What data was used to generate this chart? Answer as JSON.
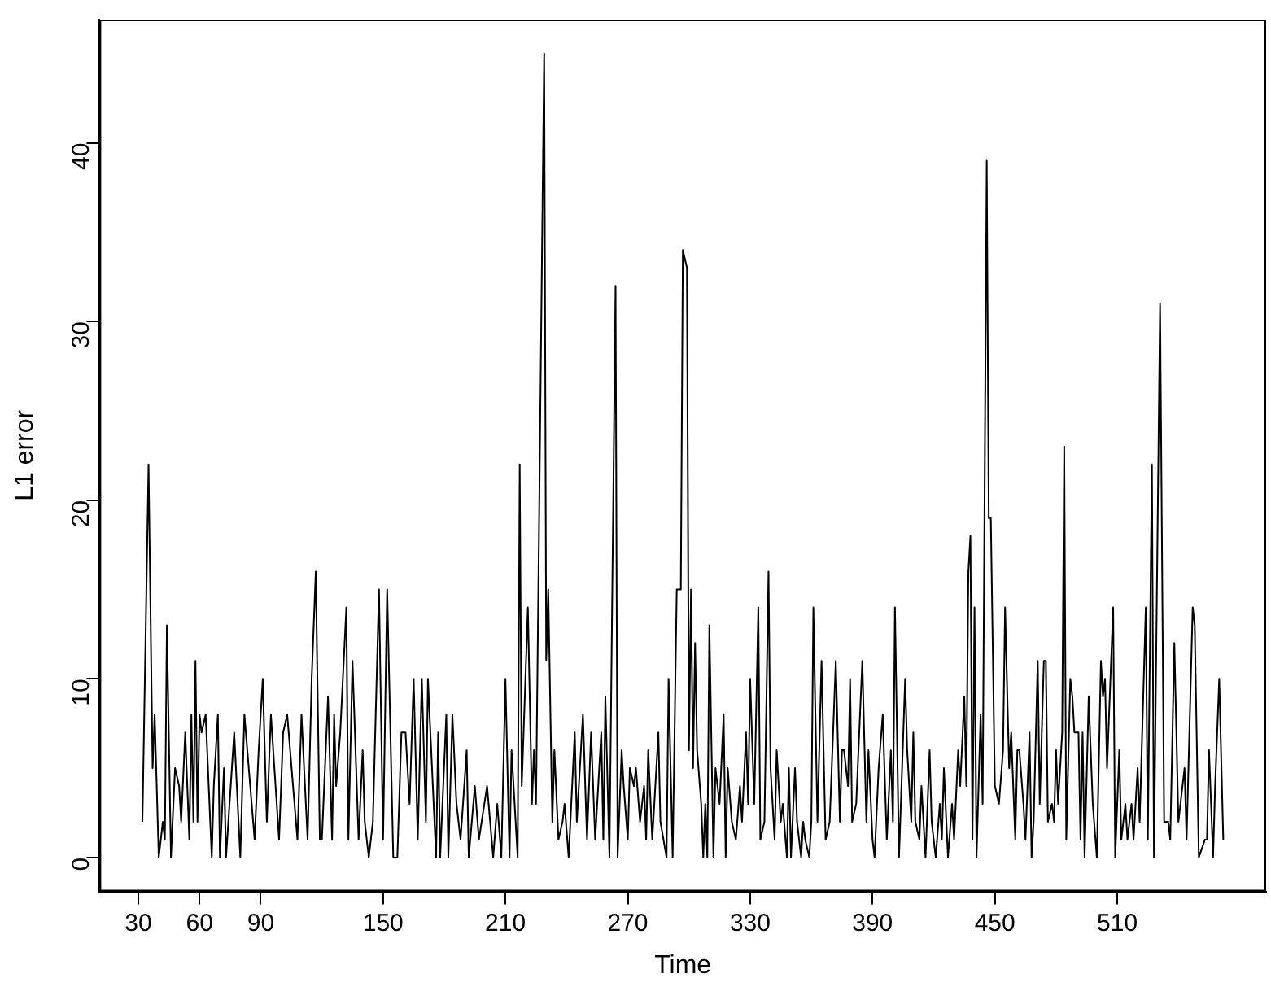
{
  "chart_data": {
    "type": "line",
    "xlabel": "Time",
    "ylabel": "L1 error",
    "xlim": [
      11,
      583
    ],
    "ylim": [
      -1.9,
      46.9
    ],
    "xticks": [
      30,
      60,
      90,
      150,
      210,
      270,
      330,
      390,
      450,
      510
    ],
    "yticks": [
      0,
      10,
      20,
      30,
      40
    ],
    "grid": false,
    "legend": false,
    "marker": "none",
    "line_style": "solid",
    "series": [
      {
        "color": "#000000",
        "x": [
          32,
          35,
          37,
          38,
          40,
          42,
          43,
          44,
          46,
          48,
          50,
          51,
          53,
          55,
          56,
          57,
          58,
          59,
          60,
          61,
          63,
          66,
          67,
          69,
          70,
          72,
          73,
          77,
          80,
          82,
          87,
          89,
          91,
          93,
          95,
          99,
          101,
          103,
          108,
          110,
          113,
          115,
          117,
          119,
          120,
          123,
          125,
          126,
          127,
          129,
          132,
          133,
          135,
          138,
          140,
          141,
          143,
          145,
          148,
          150,
          152,
          155,
          157,
          159,
          161,
          163,
          165,
          167,
          169,
          171,
          172,
          176,
          177,
          178,
          181,
          182,
          184,
          186,
          188,
          191,
          192,
          195,
          197,
          201,
          204,
          206,
          208,
          210,
          212,
          213,
          216,
          217,
          218,
          221,
          223,
          224,
          225,
          229,
          230,
          231,
          233,
          234,
          236,
          238,
          239,
          241,
          244,
          245,
          248,
          250,
          252,
          254,
          257,
          258,
          259,
          261,
          264,
          265,
          267,
          268,
          270,
          271,
          273,
          274,
          276,
          278,
          279,
          280,
          282,
          283,
          285,
          286,
          289,
          290,
          292,
          294,
          296,
          297,
          299,
          300,
          301,
          302,
          303,
          304,
          306,
          307,
          308,
          309,
          310,
          312,
          313,
          315,
          317,
          318,
          319,
          321,
          323,
          325,
          326,
          328,
          329,
          330,
          332,
          334,
          335,
          337,
          339,
          340,
          342,
          343,
          345,
          346,
          348,
          349,
          350,
          352,
          353,
          355,
          356,
          357,
          359,
          360,
          361,
          363,
          365,
          367,
          369,
          372,
          374,
          375,
          376,
          378,
          379,
          380,
          382,
          385,
          387,
          388,
          390,
          391,
          393,
          395,
          397,
          399,
          400,
          401,
          403,
          406,
          407,
          409,
          410,
          411,
          413,
          414,
          416,
          418,
          419,
          421,
          423,
          424,
          425,
          427,
          429,
          430,
          432,
          433,
          435,
          436,
          437,
          438,
          439,
          440,
          441,
          443,
          444,
          446,
          447,
          448,
          450,
          452,
          454,
          455,
          457,
          458,
          460,
          461,
          462,
          464,
          465,
          467,
          468,
          469,
          471,
          472,
          474,
          475,
          476,
          478,
          479,
          480,
          481,
          483,
          484,
          485,
          487,
          488,
          489,
          491,
          492,
          493,
          494,
          496,
          498,
          500,
          502,
          503,
          504,
          505,
          508,
          509,
          511,
          512,
          514,
          515,
          517,
          518,
          520,
          521,
          522,
          524,
          525,
          527,
          528,
          531,
          533,
          535,
          536,
          538,
          540,
          541,
          543,
          544,
          547,
          548,
          550,
          553,
          554,
          555,
          557,
          558,
          560,
          562
        ],
        "values": [
          2,
          22,
          5,
          8,
          0,
          2,
          1,
          13,
          0,
          5,
          4,
          2,
          7,
          1,
          8,
          2,
          11,
          2,
          8,
          7,
          8,
          0,
          4,
          8,
          0,
          5,
          0,
          7,
          0,
          8,
          1,
          6,
          10,
          2,
          8,
          1,
          7,
          8,
          1,
          8,
          1,
          10,
          16,
          1,
          1,
          9,
          1,
          8,
          4,
          7,
          14,
          1,
          11,
          1,
          6,
          2,
          0,
          2,
          15,
          1,
          15,
          0,
          0,
          7,
          7,
          3,
          10,
          1,
          10,
          2,
          10,
          0,
          7,
          0,
          8,
          0,
          8,
          3,
          1,
          6,
          0,
          4,
          1,
          4,
          0,
          3,
          0,
          10,
          0,
          6,
          0,
          22,
          4,
          14,
          3,
          6,
          3,
          45,
          11,
          15,
          2,
          6,
          1,
          2,
          3,
          0,
          7,
          2,
          8,
          1,
          7,
          1,
          7,
          1,
          9,
          0,
          32,
          0,
          6,
          4,
          1,
          5,
          4,
          5,
          2,
          4,
          1,
          6,
          1,
          3,
          7,
          2,
          0,
          10,
          0,
          15,
          15,
          34,
          33,
          6,
          15,
          5,
          12,
          6,
          3,
          0,
          3,
          0,
          13,
          0,
          5,
          3,
          8,
          0,
          5,
          2,
          1,
          4,
          2,
          7,
          3,
          10,
          3,
          14,
          1,
          2,
          16,
          5,
          1,
          6,
          2,
          3,
          0,
          5,
          0,
          5,
          2,
          0,
          2,
          1,
          0,
          2,
          14,
          2,
          11,
          1,
          2,
          11,
          2,
          6,
          6,
          4,
          10,
          2,
          3,
          11,
          2,
          6,
          1,
          0,
          5,
          8,
          1,
          6,
          2,
          14,
          0,
          10,
          6,
          2,
          7,
          2,
          1,
          4,
          0,
          6,
          2,
          0,
          3,
          1,
          5,
          0,
          3,
          1,
          6,
          4,
          9,
          4,
          16,
          18,
          1,
          14,
          0,
          8,
          3,
          39,
          19,
          19,
          4,
          3,
          6,
          14,
          5,
          7,
          1,
          6,
          6,
          3,
          1,
          7,
          0,
          2,
          11,
          3,
          11,
          11,
          2,
          3,
          2,
          6,
          3,
          7,
          23,
          1,
          10,
          9,
          7,
          7,
          1,
          7,
          0,
          9,
          3,
          0,
          11,
          9,
          10,
          5,
          14,
          0,
          6,
          1,
          3,
          1,
          3,
          1,
          5,
          2,
          6,
          14,
          1,
          22,
          0,
          31,
          2,
          2,
          1,
          12,
          2,
          3,
          5,
          1,
          14,
          13,
          0,
          1,
          1,
          6,
          0,
          4,
          10,
          1
        ]
      }
    ]
  }
}
